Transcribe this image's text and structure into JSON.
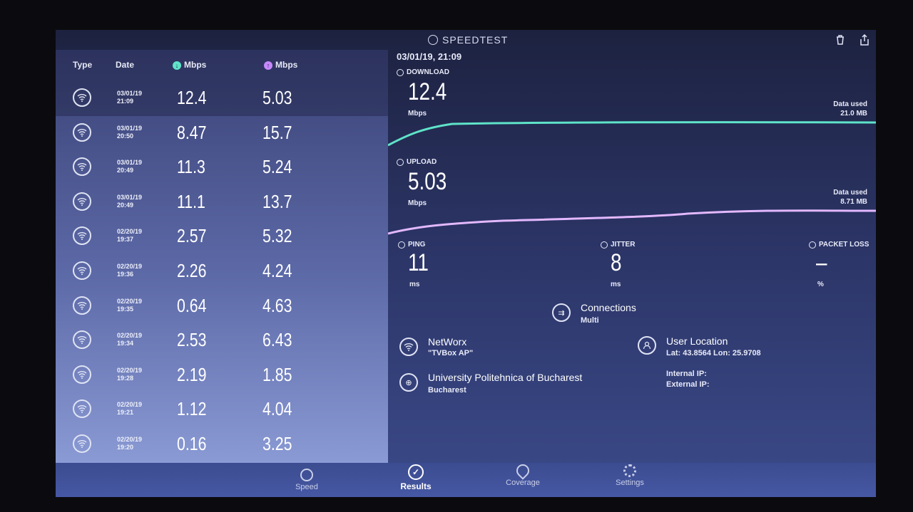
{
  "app": {
    "brand": "SPEEDTEST"
  },
  "table": {
    "headers": {
      "type": "Type",
      "date": "Date",
      "download": "Mbps",
      "upload": "Mbps"
    },
    "rows": [
      {
        "date": "03/01/19",
        "time": "21:09",
        "download": "12.4",
        "upload": "5.03"
      },
      {
        "date": "03/01/19",
        "time": "20:50",
        "download": "8.47",
        "upload": "15.7"
      },
      {
        "date": "03/01/19",
        "time": "20:49",
        "download": "11.3",
        "upload": "5.24"
      },
      {
        "date": "03/01/19",
        "time": "20:49",
        "download": "11.1",
        "upload": "13.7"
      },
      {
        "date": "02/20/19",
        "time": "19:37",
        "download": "2.57",
        "upload": "5.32"
      },
      {
        "date": "02/20/19",
        "time": "19:36",
        "download": "2.26",
        "upload": "4.24"
      },
      {
        "date": "02/20/19",
        "time": "19:35",
        "download": "0.64",
        "upload": "4.63"
      },
      {
        "date": "02/20/19",
        "time": "19:34",
        "download": "2.53",
        "upload": "6.43"
      },
      {
        "date": "02/20/19",
        "time": "19:28",
        "download": "2.19",
        "upload": "1.85"
      },
      {
        "date": "02/20/19",
        "time": "19:21",
        "download": "1.12",
        "upload": "4.04"
      },
      {
        "date": "02/20/19",
        "time": "19:20",
        "download": "0.16",
        "upload": "3.25"
      }
    ]
  },
  "detail": {
    "datetime": "03/01/19, 21:09",
    "download": {
      "label": "DOWNLOAD",
      "value": "12.4",
      "unit": "Mbps",
      "data_used_label": "Data used",
      "data_used": "21.0 MB"
    },
    "upload": {
      "label": "UPLOAD",
      "value": "5.03",
      "unit": "Mbps",
      "data_used_label": "Data used",
      "data_used": "8.71 MB"
    },
    "ping": {
      "label": "PING",
      "value": "11",
      "unit": "ms"
    },
    "jitter": {
      "label": "JITTER",
      "value": "8",
      "unit": "ms"
    },
    "packet_loss": {
      "label": "PACKET LOSS",
      "value": "–",
      "unit": "%"
    },
    "connections": {
      "title": "Connections",
      "value": "Multi"
    },
    "provider": {
      "title": "NetWorx",
      "value": "\"TVBox AP\""
    },
    "server": {
      "title": "University Politehnica of Bucharest",
      "value": "Bucharest"
    },
    "location": {
      "title": "User Location",
      "value": "Lat: 43.8564 Lon: 25.9708"
    },
    "internal_ip": "Internal IP:",
    "external_ip": "External IP:"
  },
  "nav": {
    "speed": "Speed",
    "results": "Results",
    "coverage": "Coverage",
    "settings": "Settings"
  },
  "colors": {
    "download": "#5fe3c9",
    "upload": "#c788ff"
  }
}
